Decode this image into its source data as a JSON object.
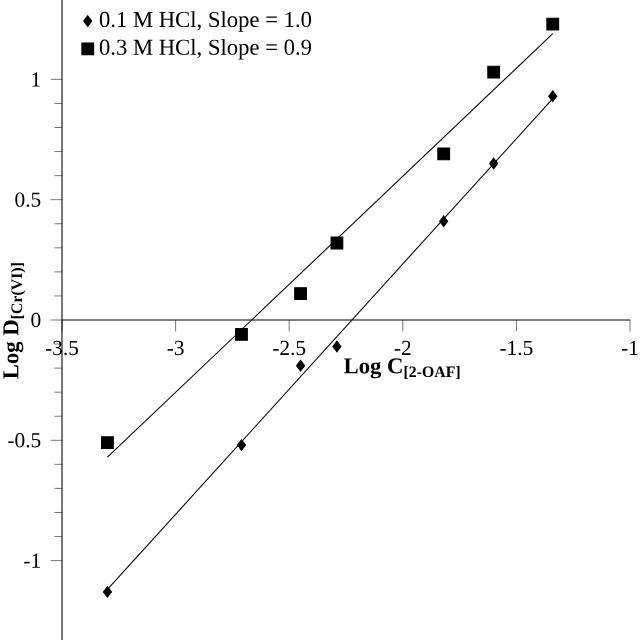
{
  "chart_data": {
    "type": "scatter",
    "xlabel": "Log C$_{[2-OAF]}$",
    "ylabel": "Log D$_{[Cr(VI)]}$",
    "xlim": [
      -3.5,
      -1
    ],
    "ylim": [
      -1.33,
      1.33
    ],
    "xticks": [
      -3.5,
      -3,
      -2.5,
      -2,
      -1.5,
      -1
    ],
    "yticks": [
      -1,
      -0.5,
      0,
      0.5,
      1
    ],
    "grid": false,
    "legend": "top left",
    "series": [
      {
        "name": "0.1 M HCl, Slope = 1.0",
        "color": "#000000",
        "marker": "diamond",
        "x": [
          -3.3,
          -2.71,
          -2.45,
          -2.29,
          -1.82,
          -1.6,
          -1.34
        ],
        "values": [
          -1.13,
          -0.52,
          -0.19,
          -0.11,
          0.41,
          0.65,
          0.93
        ]
      },
      {
        "name": "0.3 M HCl, Slope = 0.9",
        "color": "#000000",
        "marker": "square",
        "x": [
          -3.3,
          -2.71,
          -2.45,
          -2.29,
          -1.82,
          -1.6,
          -1.34
        ],
        "values": [
          -0.51,
          -0.06,
          0.11,
          0.32,
          0.69,
          1.03,
          1.23
        ]
      },
      {
        "type": "line",
        "color": "#000000",
        "marker": "none",
        "x": [
          -3.3,
          -1.34
        ],
        "values": [
          -1.12,
          0.92
        ]
      },
      {
        "type": "line",
        "color": "#000000",
        "marker": "none",
        "x": [
          -3.3,
          -1.34
        ],
        "values": [
          -0.57,
          1.19
        ]
      }
    ]
  }
}
